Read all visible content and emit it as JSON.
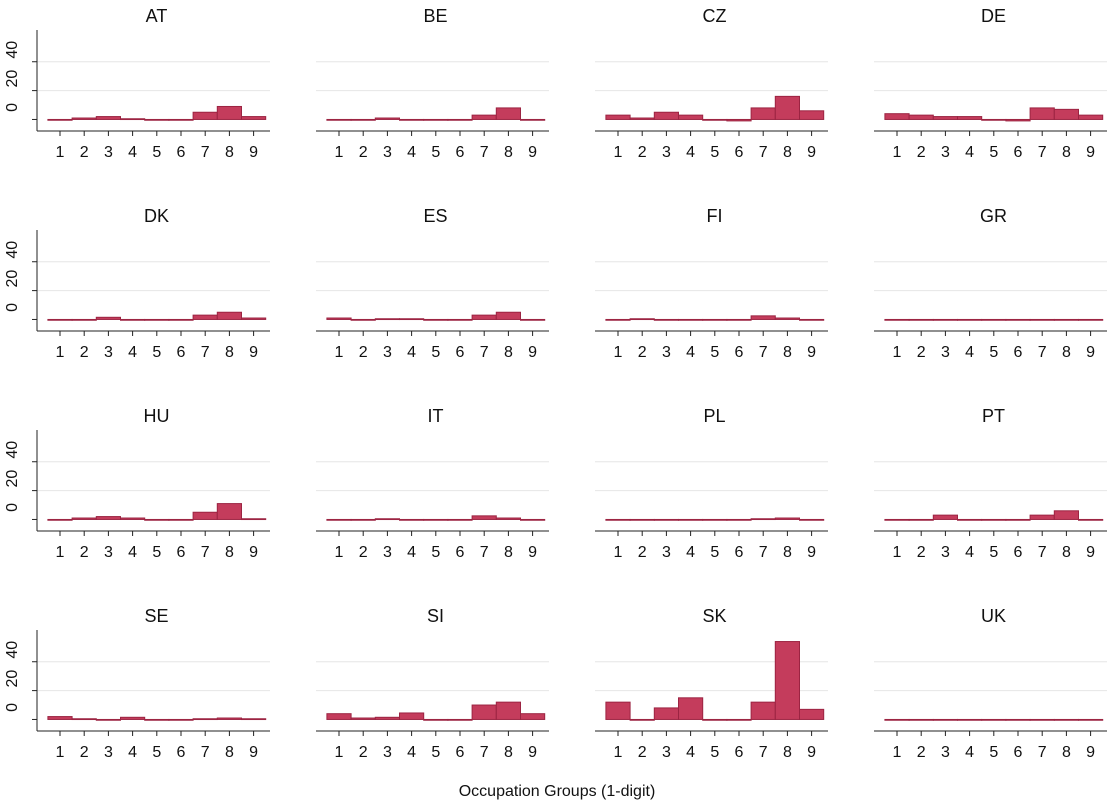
{
  "xlabel": "Occupation Groups (1-digit)",
  "chart_data": [
    {
      "type": "bar",
      "title": "AT",
      "categories": [
        "1",
        "2",
        "3",
        "4",
        "5",
        "6",
        "7",
        "8",
        "9"
      ],
      "values": [
        -0.5,
        1,
        2,
        0.5,
        -0.5,
        -0.5,
        5,
        9,
        2
      ],
      "color": "#c43c5c",
      "ylim": [
        -8,
        62
      ],
      "yticks": [
        0,
        20,
        40
      ],
      "grid": true,
      "show_yticks": true
    },
    {
      "type": "bar",
      "title": "BE",
      "categories": [
        "1",
        "2",
        "3",
        "4",
        "5",
        "6",
        "7",
        "8",
        "9"
      ],
      "values": [
        0,
        0,
        1,
        0,
        -0.5,
        -0.5,
        3,
        8,
        0
      ],
      "color": "#c43c5c",
      "ylim": [
        -8,
        62
      ],
      "yticks": [
        0,
        20,
        40
      ],
      "grid": true,
      "show_yticks": false
    },
    {
      "type": "bar",
      "title": "CZ",
      "categories": [
        "1",
        "2",
        "3",
        "4",
        "5",
        "6",
        "7",
        "8",
        "9"
      ],
      "values": [
        3,
        1,
        5,
        3,
        -0.5,
        -1,
        8,
        16,
        6
      ],
      "color": "#c43c5c",
      "ylim": [
        -8,
        62
      ],
      "yticks": [
        0,
        20,
        40
      ],
      "grid": true,
      "show_yticks": false
    },
    {
      "type": "bar",
      "title": "DE",
      "categories": [
        "1",
        "2",
        "3",
        "4",
        "5",
        "6",
        "7",
        "8",
        "9"
      ],
      "values": [
        4,
        3,
        2,
        2,
        0,
        -1,
        8,
        7,
        3
      ],
      "color": "#c43c5c",
      "ylim": [
        -8,
        62
      ],
      "yticks": [
        0,
        20,
        40
      ],
      "grid": true,
      "show_yticks": false
    },
    {
      "type": "bar",
      "title": "DK",
      "categories": [
        "1",
        "2",
        "3",
        "4",
        "5",
        "6",
        "7",
        "8",
        "9"
      ],
      "values": [
        -0.5,
        0,
        1.5,
        -0.5,
        -0.5,
        0,
        3,
        5,
        1
      ],
      "color": "#c43c5c",
      "ylim": [
        -8,
        62
      ],
      "yticks": [
        0,
        20,
        40
      ],
      "grid": true,
      "show_yticks": true
    },
    {
      "type": "bar",
      "title": "ES",
      "categories": [
        "1",
        "2",
        "3",
        "4",
        "5",
        "6",
        "7",
        "8",
        "9"
      ],
      "values": [
        1,
        0,
        0.5,
        0.5,
        -0.5,
        -0.5,
        3,
        5,
        0
      ],
      "color": "#c43c5c",
      "ylim": [
        -8,
        62
      ],
      "yticks": [
        0,
        20,
        40
      ],
      "grid": true,
      "show_yticks": false
    },
    {
      "type": "bar",
      "title": "FI",
      "categories": [
        "1",
        "2",
        "3",
        "4",
        "5",
        "6",
        "7",
        "8",
        "9"
      ],
      "values": [
        -0.5,
        0.5,
        -0.5,
        -0.5,
        -0.5,
        -0.5,
        2.5,
        1,
        0
      ],
      "color": "#c43c5c",
      "ylim": [
        -8,
        62
      ],
      "yticks": [
        0,
        20,
        40
      ],
      "grid": true,
      "show_yticks": false
    },
    {
      "type": "bar",
      "title": "GR",
      "categories": [
        "1",
        "2",
        "3",
        "4",
        "5",
        "6",
        "7",
        "8",
        "9"
      ],
      "values": [
        0,
        0,
        0,
        0,
        0,
        0,
        0,
        0,
        0
      ],
      "color": "#c43c5c",
      "ylim": [
        -8,
        62
      ],
      "yticks": [
        0,
        20,
        40
      ],
      "grid": true,
      "show_yticks": false
    },
    {
      "type": "bar",
      "title": "HU",
      "categories": [
        "1",
        "2",
        "3",
        "4",
        "5",
        "6",
        "7",
        "8",
        "9"
      ],
      "values": [
        -0.5,
        1,
        2,
        1,
        -0.5,
        -0.5,
        5,
        11,
        0.5
      ],
      "color": "#c43c5c",
      "ylim": [
        -8,
        62
      ],
      "yticks": [
        0,
        20,
        40
      ],
      "grid": true,
      "show_yticks": true
    },
    {
      "type": "bar",
      "title": "IT",
      "categories": [
        "1",
        "2",
        "3",
        "4",
        "5",
        "6",
        "7",
        "8",
        "9"
      ],
      "values": [
        0,
        0,
        0.5,
        -0.5,
        -0.5,
        -0.5,
        2.5,
        1,
        0
      ],
      "color": "#c43c5c",
      "ylim": [
        -8,
        62
      ],
      "yticks": [
        0,
        20,
        40
      ],
      "grid": true,
      "show_yticks": false
    },
    {
      "type": "bar",
      "title": "PL",
      "categories": [
        "1",
        "2",
        "3",
        "4",
        "5",
        "6",
        "7",
        "8",
        "9"
      ],
      "values": [
        0,
        0,
        0,
        0,
        -0.5,
        -0.5,
        0.5,
        1,
        0
      ],
      "color": "#c43c5c",
      "ylim": [
        -8,
        62
      ],
      "yticks": [
        0,
        20,
        40
      ],
      "grid": true,
      "show_yticks": false
    },
    {
      "type": "bar",
      "title": "PT",
      "categories": [
        "1",
        "2",
        "3",
        "4",
        "5",
        "6",
        "7",
        "8",
        "9"
      ],
      "values": [
        0,
        0,
        3,
        -0.5,
        -0.5,
        -0.5,
        3,
        6,
        -0.5
      ],
      "color": "#c43c5c",
      "ylim": [
        -8,
        62
      ],
      "yticks": [
        0,
        20,
        40
      ],
      "grid": true,
      "show_yticks": false
    },
    {
      "type": "bar",
      "title": "SE",
      "categories": [
        "1",
        "2",
        "3",
        "4",
        "5",
        "6",
        "7",
        "8",
        "9"
      ],
      "values": [
        2,
        0.5,
        0,
        1.5,
        -0.5,
        -0.5,
        0.5,
        1,
        0.5
      ],
      "color": "#c43c5c",
      "ylim": [
        -8,
        62
      ],
      "yticks": [
        0,
        20,
        40
      ],
      "grid": true,
      "show_yticks": true
    },
    {
      "type": "bar",
      "title": "SI",
      "categories": [
        "1",
        "2",
        "3",
        "4",
        "5",
        "6",
        "7",
        "8",
        "9"
      ],
      "values": [
        4,
        1,
        1.5,
        4.5,
        -0.5,
        -0.5,
        10,
        12,
        4
      ],
      "color": "#c43c5c",
      "ylim": [
        -8,
        62
      ],
      "yticks": [
        0,
        20,
        40
      ],
      "grid": true,
      "show_yticks": false
    },
    {
      "type": "bar",
      "title": "SK",
      "categories": [
        "1",
        "2",
        "3",
        "4",
        "5",
        "6",
        "7",
        "8",
        "9"
      ],
      "values": [
        12,
        -0.5,
        8,
        15,
        -0.5,
        0,
        12,
        54,
        7
      ],
      "color": "#c43c5c",
      "ylim": [
        -8,
        62
      ],
      "yticks": [
        0,
        20,
        40
      ],
      "grid": true,
      "show_yticks": false
    },
    {
      "type": "bar",
      "title": "UK",
      "categories": [
        "1",
        "2",
        "3",
        "4",
        "5",
        "6",
        "7",
        "8",
        "9"
      ],
      "values": [
        -0.5,
        0,
        0,
        -0.5,
        -0.5,
        -0.5,
        0,
        -0.5,
        0
      ],
      "color": "#c43c5c",
      "ylim": [
        -8,
        62
      ],
      "yticks": [
        0,
        20,
        40
      ],
      "grid": true,
      "show_yticks": false
    }
  ]
}
